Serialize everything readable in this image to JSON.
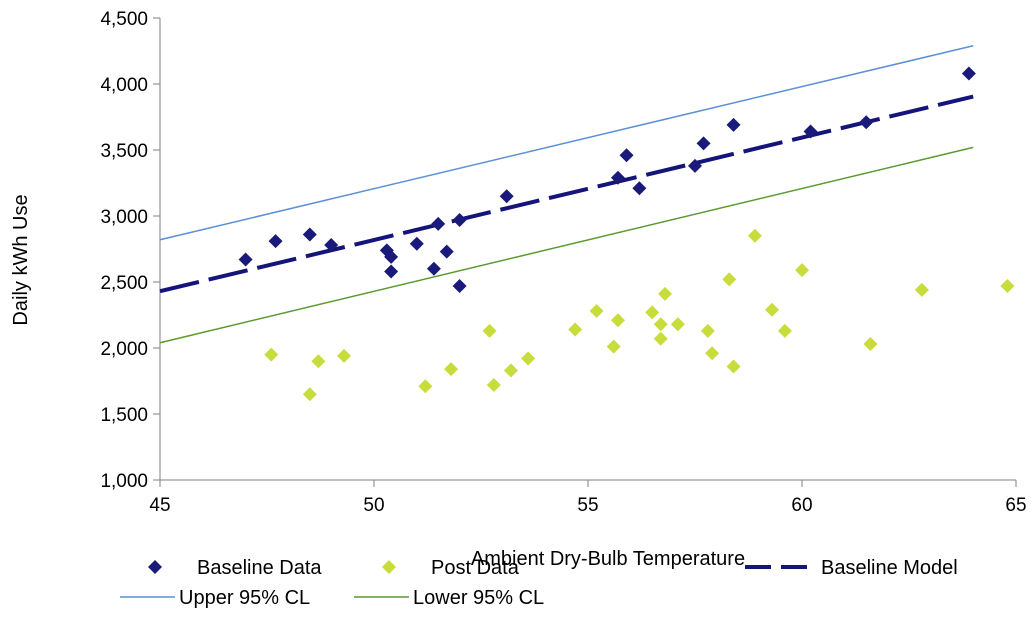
{
  "chart_data": {
    "type": "scatter",
    "title": "",
    "xlabel": "Ambient Dry-Bulb Temperature",
    "ylabel": "Daily kWh Use",
    "xlim": [
      45,
      65
    ],
    "ylim": [
      1000,
      4500
    ],
    "x_ticks": [
      45,
      50,
      55,
      60,
      65
    ],
    "y_ticks": [
      1000,
      1500,
      2000,
      2500,
      3000,
      3500,
      4000,
      4500
    ],
    "y_tick_labels": [
      "1,000",
      "1,500",
      "2,000",
      "2,500",
      "3,000",
      "3,500",
      "4,000",
      "4,500"
    ],
    "grid": false,
    "legend_position": "bottom",
    "series": [
      {
        "name": "Baseline Data",
        "kind": "scatter",
        "marker": "diamond",
        "color": "#1a1a7a",
        "points": [
          [
            47.0,
            2670
          ],
          [
            47.7,
            2810
          ],
          [
            48.5,
            2860
          ],
          [
            49.0,
            2780
          ],
          [
            50.3,
            2740
          ],
          [
            50.4,
            2690
          ],
          [
            50.4,
            2580
          ],
          [
            51.0,
            2790
          ],
          [
            51.4,
            2600
          ],
          [
            51.5,
            2940
          ],
          [
            51.7,
            2730
          ],
          [
            52.0,
            2970
          ],
          [
            52.0,
            2470
          ],
          [
            53.1,
            3150
          ],
          [
            55.7,
            3290
          ],
          [
            55.9,
            3460
          ],
          [
            56.2,
            3210
          ],
          [
            57.5,
            3380
          ],
          [
            57.7,
            3550
          ],
          [
            58.4,
            3690
          ],
          [
            60.2,
            3640
          ],
          [
            61.5,
            3710
          ],
          [
            63.9,
            4080
          ]
        ]
      },
      {
        "name": "Post Data",
        "kind": "scatter",
        "marker": "diamond",
        "color": "#c8dc3c",
        "points": [
          [
            47.6,
            1950
          ],
          [
            48.5,
            1650
          ],
          [
            48.7,
            1900
          ],
          [
            49.3,
            1940
          ],
          [
            51.2,
            1710
          ],
          [
            51.8,
            1840
          ],
          [
            52.7,
            2130
          ],
          [
            52.8,
            1720
          ],
          [
            53.2,
            1830
          ],
          [
            53.6,
            1920
          ],
          [
            54.7,
            2140
          ],
          [
            55.2,
            2280
          ],
          [
            55.6,
            2010
          ],
          [
            55.7,
            2210
          ],
          [
            56.5,
            2270
          ],
          [
            56.7,
            2070
          ],
          [
            56.7,
            2180
          ],
          [
            56.8,
            2410
          ],
          [
            57.1,
            2180
          ],
          [
            57.8,
            2130
          ],
          [
            57.9,
            1960
          ],
          [
            58.3,
            2520
          ],
          [
            58.4,
            1860
          ],
          [
            58.9,
            2850
          ],
          [
            59.3,
            2290
          ],
          [
            59.6,
            2130
          ],
          [
            60.0,
            2590
          ],
          [
            61.6,
            2030
          ],
          [
            62.8,
            2440
          ],
          [
            64.8,
            2470
          ]
        ]
      },
      {
        "name": "Baseline Model",
        "kind": "line",
        "style": "dashed",
        "color": "#14147a",
        "points": [
          [
            45,
            2430
          ],
          [
            64,
            3905
          ]
        ]
      },
      {
        "name": "Upper 95% CL",
        "kind": "line",
        "style": "solid",
        "color": "#5b8fd6",
        "points": [
          [
            45,
            2820
          ],
          [
            64,
            4290
          ]
        ]
      },
      {
        "name": "Lower 95% CL",
        "kind": "line",
        "style": "solid",
        "color": "#5a9a2e",
        "points": [
          [
            45,
            2040
          ],
          [
            64,
            3520
          ]
        ]
      }
    ]
  }
}
